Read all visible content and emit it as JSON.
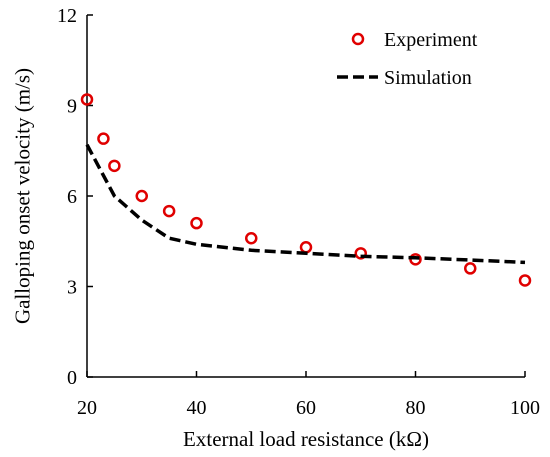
{
  "chart_data": {
    "type": "scatter",
    "xlabel": "External load resistance (kΩ)",
    "ylabel": "Galloping onset velocity (m/s)",
    "xlim": [
      20,
      100
    ],
    "ylim": [
      0,
      12
    ],
    "xticks": [
      20,
      40,
      60,
      80,
      100
    ],
    "yticks": [
      0,
      3,
      6,
      9,
      12
    ],
    "grid": false,
    "legend_position": "top-right",
    "series": [
      {
        "name": "Experiment",
        "kind": "markers",
        "marker": "open-circle",
        "color": "#e00000",
        "x": [
          20,
          23,
          25,
          30,
          35,
          40,
          50,
          60,
          70,
          80,
          90,
          100
        ],
        "y": [
          9.2,
          7.9,
          7.0,
          6.0,
          5.5,
          5.1,
          4.6,
          4.3,
          4.1,
          3.9,
          3.6,
          3.2
        ]
      },
      {
        "name": "Simulation",
        "kind": "line",
        "style": "dashed",
        "color": "#000000",
        "x": [
          20,
          25,
          30,
          35,
          40,
          50,
          60,
          70,
          80,
          90,
          100
        ],
        "y": [
          7.7,
          6.0,
          5.2,
          4.6,
          4.4,
          4.2,
          4.1,
          4.0,
          3.95,
          3.88,
          3.8
        ]
      }
    ]
  }
}
